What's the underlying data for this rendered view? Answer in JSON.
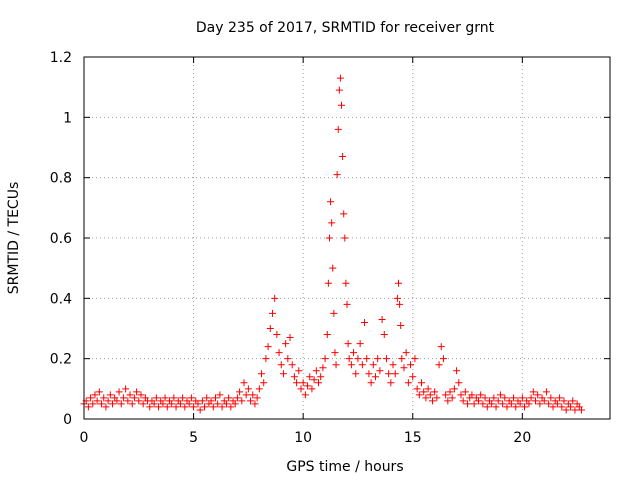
{
  "chart_data": {
    "type": "scatter",
    "title": "Day 235 of 2017, SRMTID for receiver grnt",
    "xlabel": "GPS time / hours",
    "ylabel": "SRMTID / TECUs",
    "xlim": [
      0,
      24
    ],
    "ylim": [
      0,
      1.2
    ],
    "xticks": [
      0,
      5,
      10,
      15,
      20
    ],
    "xtick_labels": [
      "0",
      "5",
      "10",
      "15",
      "20"
    ],
    "yticks": [
      0,
      0.2,
      0.4,
      0.6,
      0.8,
      1.0,
      1.2
    ],
    "ytick_labels": [
      "0",
      "0.2",
      "0.4",
      "0.6",
      "0.8",
      "1",
      "1.2"
    ],
    "grid": true,
    "marker": "+",
    "color": "#ff0000",
    "series": [
      {
        "name": "SRMTID",
        "points": [
          [
            0.0,
            0.05
          ],
          [
            0.1,
            0.06
          ],
          [
            0.2,
            0.04
          ],
          [
            0.3,
            0.07
          ],
          [
            0.4,
            0.05
          ],
          [
            0.5,
            0.08
          ],
          [
            0.6,
            0.06
          ],
          [
            0.7,
            0.09
          ],
          [
            0.8,
            0.05
          ],
          [
            0.9,
            0.07
          ],
          [
            1.0,
            0.04
          ],
          [
            1.1,
            0.06
          ],
          [
            1.2,
            0.08
          ],
          [
            1.3,
            0.05
          ],
          [
            1.4,
            0.07
          ],
          [
            1.5,
            0.06
          ],
          [
            1.6,
            0.09
          ],
          [
            1.7,
            0.05
          ],
          [
            1.8,
            0.07
          ],
          [
            1.9,
            0.1
          ],
          [
            2.0,
            0.06
          ],
          [
            2.1,
            0.08
          ],
          [
            2.2,
            0.05
          ],
          [
            2.3,
            0.07
          ],
          [
            2.4,
            0.09
          ],
          [
            2.5,
            0.06
          ],
          [
            2.6,
            0.08
          ],
          [
            2.7,
            0.05
          ],
          [
            2.8,
            0.07
          ],
          [
            2.9,
            0.06
          ],
          [
            3.0,
            0.04
          ],
          [
            3.1,
            0.06
          ],
          [
            3.2,
            0.05
          ],
          [
            3.3,
            0.07
          ],
          [
            3.4,
            0.04
          ],
          [
            3.5,
            0.06
          ],
          [
            3.6,
            0.05
          ],
          [
            3.7,
            0.07
          ],
          [
            3.8,
            0.04
          ],
          [
            3.9,
            0.06
          ],
          [
            4.0,
            0.05
          ],
          [
            4.1,
            0.07
          ],
          [
            4.2,
            0.04
          ],
          [
            4.3,
            0.06
          ],
          [
            4.4,
            0.05
          ],
          [
            4.5,
            0.07
          ],
          [
            4.6,
            0.04
          ],
          [
            4.7,
            0.06
          ],
          [
            4.8,
            0.05
          ],
          [
            4.9,
            0.07
          ],
          [
            5.0,
            0.04
          ],
          [
            5.1,
            0.06
          ],
          [
            5.2,
            0.05
          ],
          [
            5.3,
            0.03
          ],
          [
            5.4,
            0.06
          ],
          [
            5.5,
            0.04
          ],
          [
            5.6,
            0.07
          ],
          [
            5.7,
            0.05
          ],
          [
            5.8,
            0.06
          ],
          [
            5.9,
            0.04
          ],
          [
            6.0,
            0.07
          ],
          [
            6.1,
            0.05
          ],
          [
            6.2,
            0.08
          ],
          [
            6.3,
            0.04
          ],
          [
            6.4,
            0.06
          ],
          [
            6.5,
            0.05
          ],
          [
            6.6,
            0.07
          ],
          [
            6.7,
            0.04
          ],
          [
            6.8,
            0.06
          ],
          [
            6.9,
            0.05
          ],
          [
            7.0,
            0.07
          ],
          [
            7.1,
            0.09
          ],
          [
            7.2,
            0.06
          ],
          [
            7.3,
            0.12
          ],
          [
            7.4,
            0.08
          ],
          [
            7.5,
            0.1
          ],
          [
            7.6,
            0.06
          ],
          [
            7.7,
            0.08
          ],
          [
            7.8,
            0.05
          ],
          [
            7.9,
            0.07
          ],
          [
            8.0,
            0.1
          ],
          [
            8.1,
            0.15
          ],
          [
            8.2,
            0.12
          ],
          [
            8.3,
            0.2
          ],
          [
            8.4,
            0.24
          ],
          [
            8.5,
            0.3
          ],
          [
            8.6,
            0.35
          ],
          [
            8.7,
            0.4
          ],
          [
            8.8,
            0.28
          ],
          [
            8.9,
            0.22
          ],
          [
            9.0,
            0.18
          ],
          [
            9.1,
            0.15
          ],
          [
            9.2,
            0.25
          ],
          [
            9.3,
            0.2
          ],
          [
            9.4,
            0.27
          ],
          [
            9.5,
            0.18
          ],
          [
            9.6,
            0.14
          ],
          [
            9.7,
            0.12
          ],
          [
            9.8,
            0.16
          ],
          [
            9.9,
            0.1
          ],
          [
            10.0,
            0.12
          ],
          [
            10.1,
            0.08
          ],
          [
            10.2,
            0.11
          ],
          [
            10.3,
            0.14
          ],
          [
            10.4,
            0.1
          ],
          [
            10.5,
            0.13
          ],
          [
            10.6,
            0.16
          ],
          [
            10.7,
            0.12
          ],
          [
            10.8,
            0.14
          ],
          [
            10.9,
            0.17
          ],
          [
            11.0,
            0.2
          ],
          [
            11.1,
            0.28
          ],
          [
            11.15,
            0.45
          ],
          [
            11.2,
            0.6
          ],
          [
            11.25,
            0.72
          ],
          [
            11.3,
            0.65
          ],
          [
            11.35,
            0.5
          ],
          [
            11.4,
            0.35
          ],
          [
            11.45,
            0.22
          ],
          [
            11.5,
            0.18
          ],
          [
            11.55,
            0.81
          ],
          [
            11.6,
            0.96
          ],
          [
            11.65,
            1.09
          ],
          [
            11.7,
            1.13
          ],
          [
            11.75,
            1.04
          ],
          [
            11.8,
            0.87
          ],
          [
            11.85,
            0.68
          ],
          [
            11.9,
            0.6
          ],
          [
            11.95,
            0.45
          ],
          [
            12.0,
            0.38
          ],
          [
            12.05,
            0.25
          ],
          [
            12.1,
            0.2
          ],
          [
            12.2,
            0.18
          ],
          [
            12.3,
            0.22
          ],
          [
            12.4,
            0.15
          ],
          [
            12.5,
            0.2
          ],
          [
            12.6,
            0.25
          ],
          [
            12.7,
            0.18
          ],
          [
            12.8,
            0.32
          ],
          [
            12.9,
            0.2
          ],
          [
            13.0,
            0.15
          ],
          [
            13.1,
            0.12
          ],
          [
            13.2,
            0.18
          ],
          [
            13.3,
            0.14
          ],
          [
            13.4,
            0.2
          ],
          [
            13.5,
            0.16
          ],
          [
            13.6,
            0.33
          ],
          [
            13.7,
            0.28
          ],
          [
            13.8,
            0.2
          ],
          [
            13.9,
            0.15
          ],
          [
            14.0,
            0.12
          ],
          [
            14.1,
            0.18
          ],
          [
            14.2,
            0.15
          ],
          [
            14.3,
            0.4
          ],
          [
            14.35,
            0.45
          ],
          [
            14.4,
            0.38
          ],
          [
            14.45,
            0.31
          ],
          [
            14.5,
            0.2
          ],
          [
            14.6,
            0.17
          ],
          [
            14.7,
            0.22
          ],
          [
            14.8,
            0.12
          ],
          [
            14.9,
            0.18
          ],
          [
            15.0,
            0.14
          ],
          [
            15.1,
            0.2
          ],
          [
            15.2,
            0.1
          ],
          [
            15.3,
            0.08
          ],
          [
            15.4,
            0.12
          ],
          [
            15.5,
            0.09
          ],
          [
            15.6,
            0.07
          ],
          [
            15.7,
            0.1
          ],
          [
            15.8,
            0.08
          ],
          [
            15.9,
            0.06
          ],
          [
            16.0,
            0.09
          ],
          [
            16.1,
            0.07
          ],
          [
            16.2,
            0.18
          ],
          [
            16.3,
            0.24
          ],
          [
            16.4,
            0.2
          ],
          [
            16.5,
            0.08
          ],
          [
            16.6,
            0.06
          ],
          [
            16.7,
            0.09
          ],
          [
            16.8,
            0.07
          ],
          [
            16.9,
            0.1
          ],
          [
            17.0,
            0.16
          ],
          [
            17.1,
            0.12
          ],
          [
            17.2,
            0.08
          ],
          [
            17.3,
            0.06
          ],
          [
            17.4,
            0.09
          ],
          [
            17.5,
            0.05
          ],
          [
            17.6,
            0.07
          ],
          [
            17.7,
            0.08
          ],
          [
            17.8,
            0.05
          ],
          [
            17.9,
            0.07
          ],
          [
            18.0,
            0.06
          ],
          [
            18.1,
            0.08
          ],
          [
            18.2,
            0.05
          ],
          [
            18.3,
            0.07
          ],
          [
            18.4,
            0.04
          ],
          [
            18.5,
            0.06
          ],
          [
            18.6,
            0.05
          ],
          [
            18.7,
            0.07
          ],
          [
            18.8,
            0.04
          ],
          [
            18.9,
            0.06
          ],
          [
            19.0,
            0.08
          ],
          [
            19.1,
            0.05
          ],
          [
            19.2,
            0.07
          ],
          [
            19.3,
            0.04
          ],
          [
            19.4,
            0.06
          ],
          [
            19.5,
            0.05
          ],
          [
            19.6,
            0.07
          ],
          [
            19.7,
            0.04
          ],
          [
            19.8,
            0.06
          ],
          [
            19.9,
            0.05
          ],
          [
            20.0,
            0.07
          ],
          [
            20.1,
            0.04
          ],
          [
            20.2,
            0.06
          ],
          [
            20.3,
            0.05
          ],
          [
            20.4,
            0.07
          ],
          [
            20.5,
            0.09
          ],
          [
            20.6,
            0.06
          ],
          [
            20.7,
            0.08
          ],
          [
            20.8,
            0.05
          ],
          [
            20.9,
            0.07
          ],
          [
            21.0,
            0.06
          ],
          [
            21.1,
            0.09
          ],
          [
            21.2,
            0.05
          ],
          [
            21.3,
            0.07
          ],
          [
            21.4,
            0.04
          ],
          [
            21.5,
            0.06
          ],
          [
            21.6,
            0.05
          ],
          [
            21.7,
            0.07
          ],
          [
            21.8,
            0.04
          ],
          [
            21.9,
            0.06
          ],
          [
            22.0,
            0.03
          ],
          [
            22.1,
            0.05
          ],
          [
            22.2,
            0.04
          ],
          [
            22.3,
            0.06
          ],
          [
            22.4,
            0.03
          ],
          [
            22.5,
            0.05
          ],
          [
            22.6,
            0.04
          ],
          [
            22.7,
            0.03
          ]
        ]
      }
    ]
  }
}
